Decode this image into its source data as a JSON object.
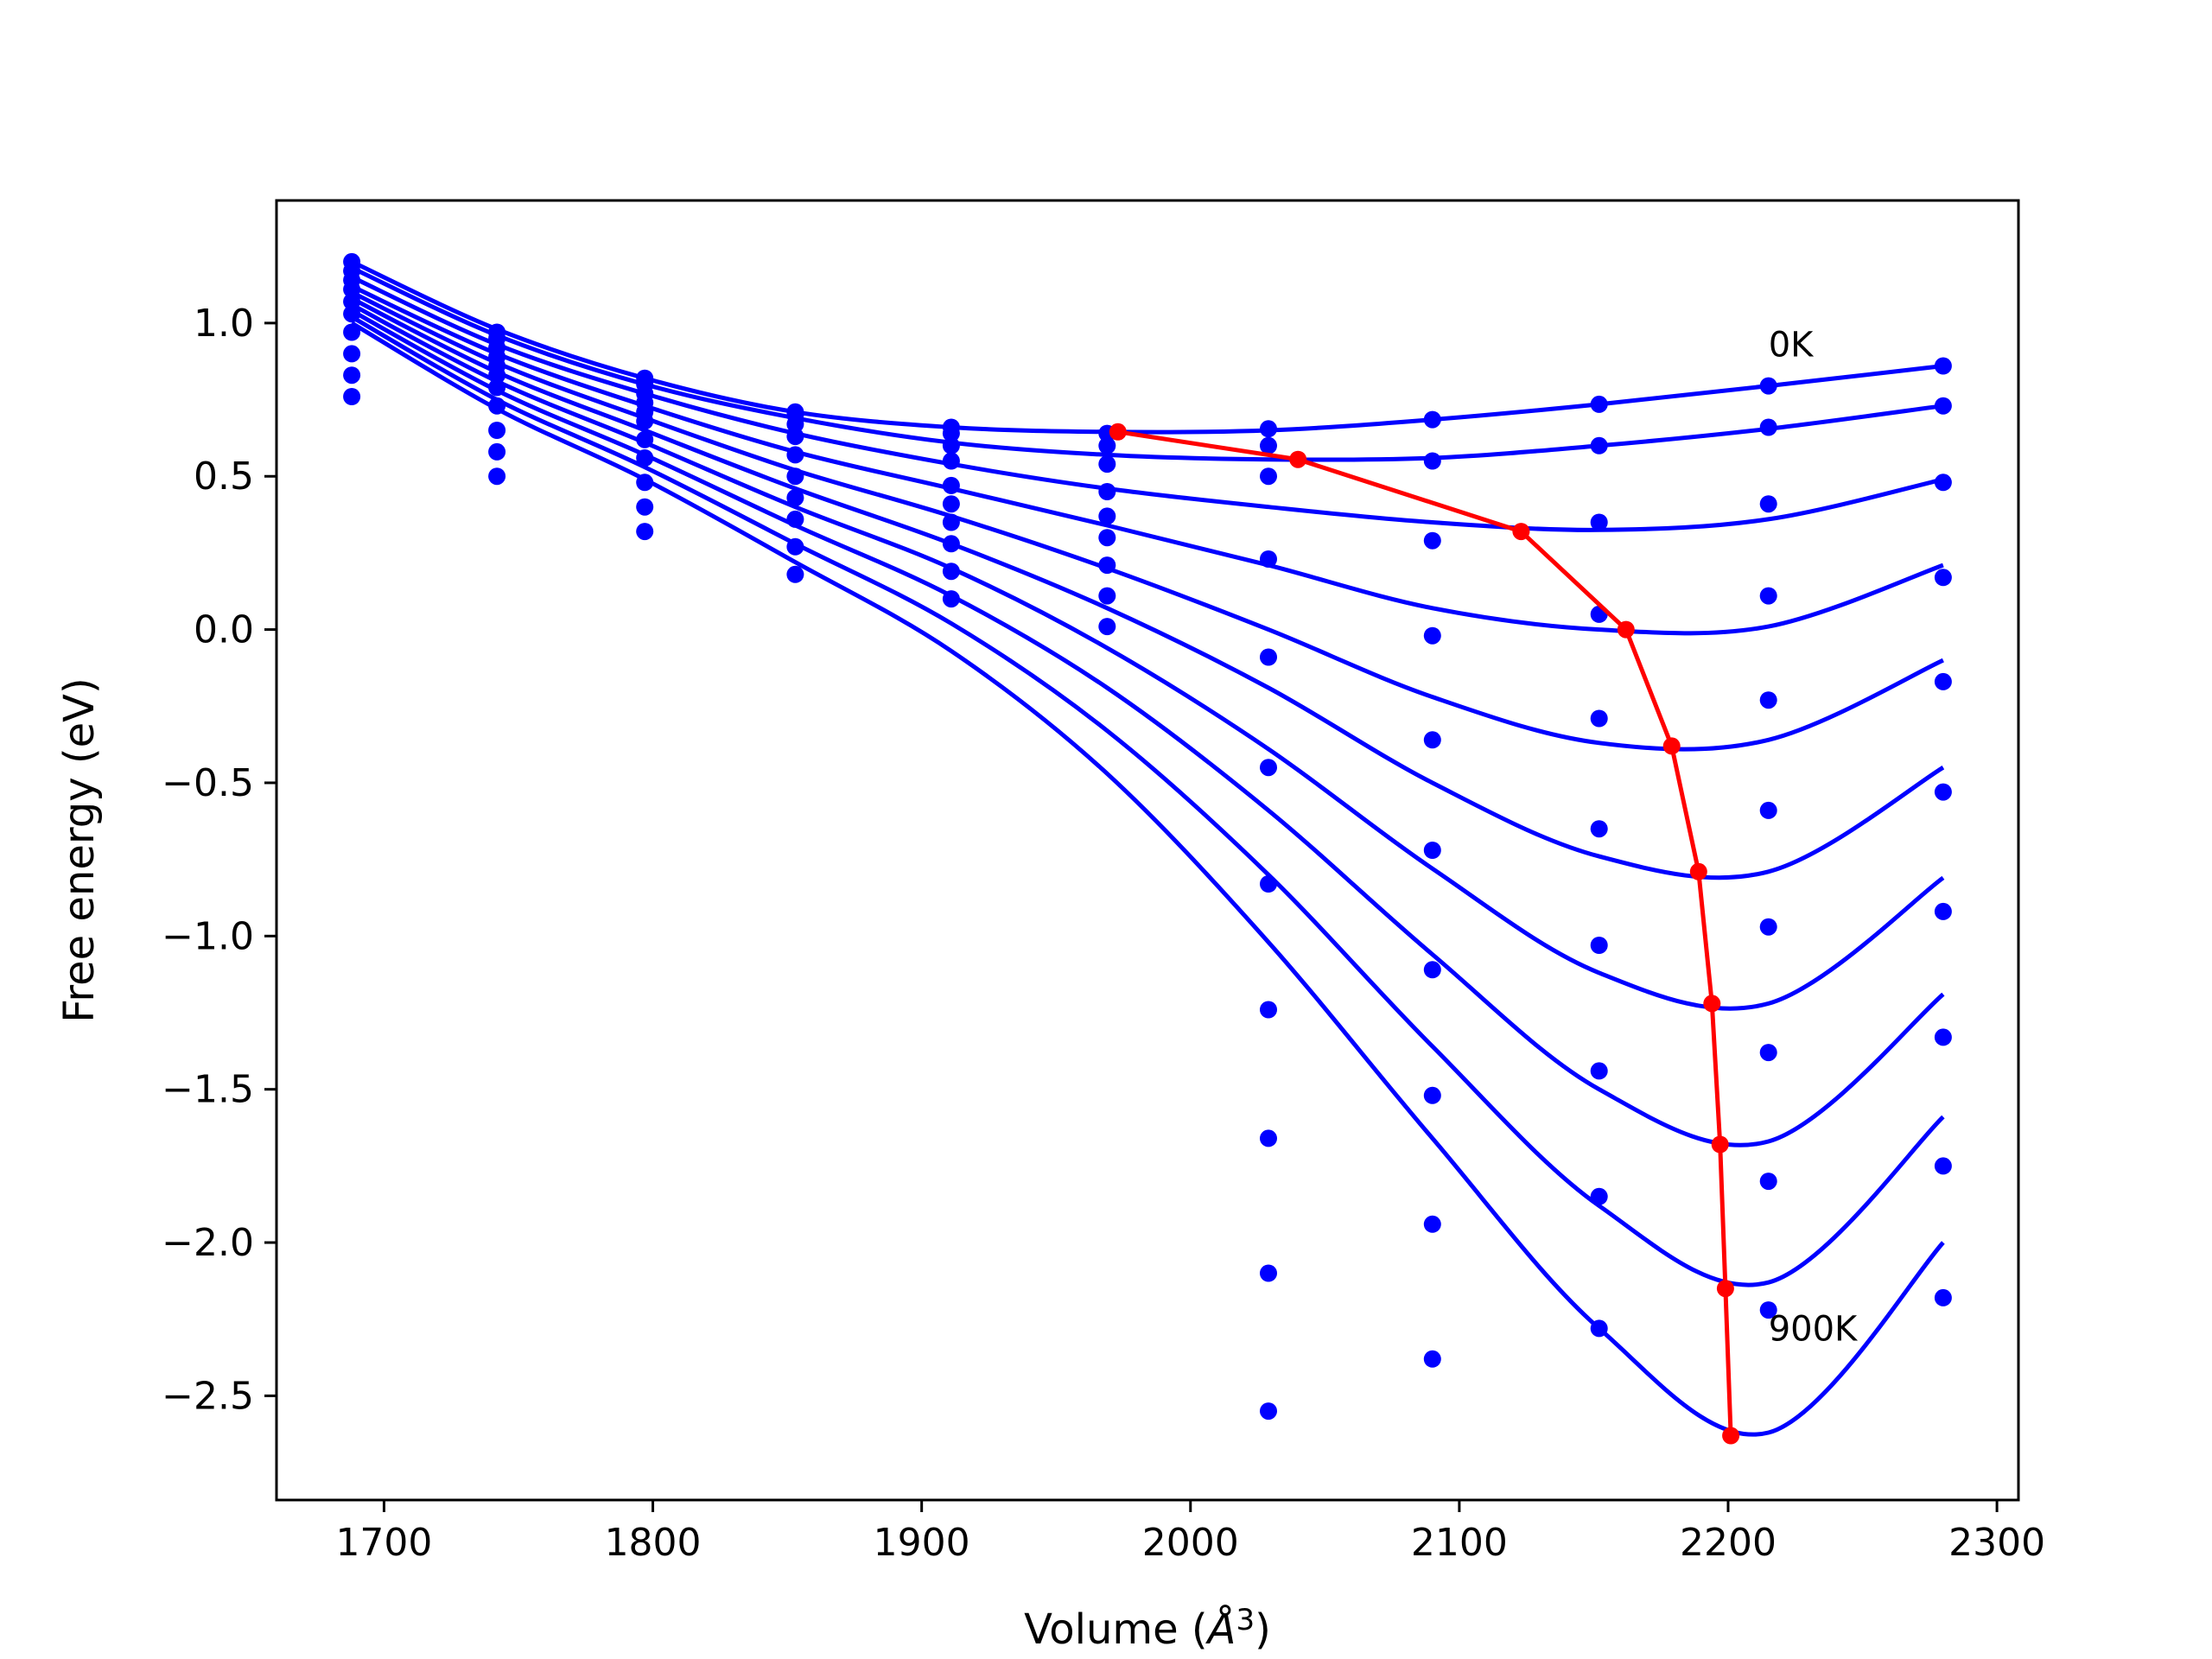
{
  "chart_data": {
    "type": "line",
    "title": "",
    "xlabel": "Volume (",
    "xlabel_unit": "Å",
    "xlabel_exp": "3",
    "xlabel_close": ")",
    "ylabel": "Free energy (eV)",
    "xlim": [
      1660,
      2308
    ],
    "ylim": [
      -2.84,
      1.4
    ],
    "xticks": [
      1700,
      1800,
      1900,
      2000,
      2100,
      2200,
      2300
    ],
    "xtick_labels": [
      "1700",
      "1800",
      "1900",
      "2000",
      "2100",
      "2200",
      "2300"
    ],
    "yticks": [
      1.0,
      0.5,
      0.0,
      -0.5,
      -1.0,
      -1.5,
      -2.0,
      -2.5
    ],
    "ytick_labels": [
      "1.0",
      "0.5",
      "0.0",
      "−0.5",
      "−1.0",
      "−1.5",
      "−2.0",
      "−2.5"
    ],
    "grid": false,
    "legend": "none",
    "annotations": [
      {
        "text": "0K",
        "x": 2215,
        "y": 0.93
      },
      {
        "text": "900K",
        "x": 2215,
        "y": -2.28
      }
    ],
    "data_volumes": [
      1688,
      1742,
      1797,
      1853,
      1911,
      1969,
      2029,
      2090,
      2152,
      2215,
      2280
    ],
    "curve_color": "#0000ff",
    "min_line_color": "#ff0000",
    "curves": [
      {
        "F": [
          1.2,
          0.97,
          0.82,
          0.71,
          0.66,
          0.64,
          0.655,
          0.685,
          0.735,
          0.795,
          0.86
        ],
        "fit": [
          1.2,
          0.98,
          0.82,
          0.71,
          0.66,
          0.645,
          0.65,
          0.685,
          0.735,
          0.795,
          0.86
        ]
      },
      {
        "F": [
          1.17,
          0.95,
          0.8,
          0.7,
          0.64,
          0.6,
          0.6,
          0.55,
          0.6,
          0.66,
          0.73
        ],
        "fit": [
          1.18,
          0.96,
          0.8,
          0.69,
          0.61,
          0.57,
          0.555,
          0.56,
          0.6,
          0.655,
          0.73
        ]
      },
      {
        "F": [
          1.14,
          0.92,
          0.77,
          0.67,
          0.6,
          0.54,
          0.5,
          0.29,
          0.35,
          0.41,
          0.48
        ],
        "fit": [
          1.15,
          0.93,
          0.77,
          0.64,
          0.54,
          0.46,
          0.4,
          0.35,
          0.325,
          0.36,
          0.49
        ]
      },
      {
        "F": [
          1.11,
          0.89,
          0.74,
          0.63,
          0.55,
          0.45,
          0.23,
          -0.02,
          0.05,
          0.11,
          0.17
        ],
        "fit": [
          1.12,
          0.9,
          0.73,
          0.58,
          0.46,
          0.34,
          0.21,
          0.07,
          0.0,
          0.01,
          0.21
        ]
      },
      {
        "F": [
          1.07,
          0.86,
          0.71,
          0.57,
          0.47,
          0.37,
          -0.09,
          -0.36,
          -0.29,
          -0.23,
          -0.17
        ],
        "fit": [
          1.1,
          0.87,
          0.69,
          0.52,
          0.37,
          0.2,
          0.0,
          -0.22,
          -0.37,
          -0.36,
          -0.1
        ]
      },
      {
        "F": [
          1.03,
          0.83,
          0.68,
          0.5,
          0.41,
          0.3,
          -0.45,
          -0.72,
          -0.65,
          -0.59,
          -0.53
        ],
        "fit": [
          1.08,
          0.84,
          0.65,
          0.46,
          0.28,
          0.07,
          -0.19,
          -0.5,
          -0.74,
          -0.79,
          -0.45
        ]
      },
      {
        "F": [
          0.97,
          0.79,
          0.62,
          0.43,
          0.35,
          0.21,
          -0.83,
          -1.11,
          -1.03,
          -0.97,
          -0.92
        ],
        "fit": [
          1.06,
          0.81,
          0.61,
          0.4,
          0.2,
          -0.06,
          -0.39,
          -0.78,
          -1.12,
          -1.22,
          -0.81
        ]
      },
      {
        "F": [
          0.9,
          0.73,
          0.56,
          0.36,
          0.28,
          0.11,
          -1.24,
          -1.52,
          -1.44,
          -1.38,
          -1.33
        ],
        "fit": [
          1.04,
          0.78,
          0.57,
          0.34,
          0.11,
          -0.19,
          -0.59,
          -1.06,
          -1.5,
          -1.67,
          -1.19
        ]
      },
      {
        "F": [
          0.83,
          0.65,
          0.48,
          0.27,
          0.19,
          0.01,
          -1.66,
          -1.94,
          -1.85,
          -1.8,
          -1.75
        ],
        "fit": [
          1.02,
          0.75,
          0.53,
          0.28,
          0.02,
          -0.33,
          -0.8,
          -1.36,
          -1.88,
          -2.13,
          -1.59
        ]
      },
      {
        "F": [
          0.76,
          0.58,
          0.4,
          0.18,
          0.1,
          null,
          -2.1,
          -2.38,
          -2.28,
          -2.22,
          -2.18
        ],
        "fit": [
          1.0,
          0.72,
          0.49,
          0.22,
          -0.07,
          -0.47,
          -1.02,
          -1.66,
          -2.28,
          -2.62,
          -2.0
        ]
      },
      {
        "F": [
          null,
          0.5,
          0.32,
          null,
          null,
          null,
          -2.55,
          null,
          null,
          null,
          null
        ],
        "fit": null
      }
    ],
    "minima": {
      "x": [
        1973,
        2040,
        2123,
        2162,
        2179,
        2189,
        2194,
        2197,
        2199,
        2201
      ],
      "y": [
        0.645,
        0.555,
        0.32,
        0.0,
        -0.38,
        -0.79,
        -1.22,
        -1.68,
        -2.15,
        -2.63
      ]
    }
  }
}
